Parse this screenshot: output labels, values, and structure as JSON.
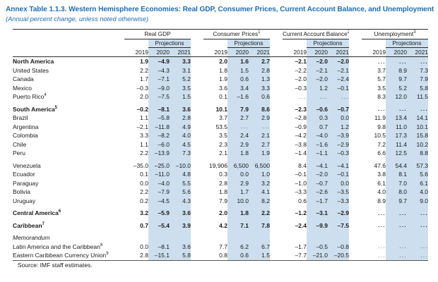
{
  "title": "Annex Table 1.1.3. Western Hemisphere Economies: Real GDP, Consumer Prices, Current Account Balance, and Unemployment",
  "subtitle": "(Annual percent change, unless noted otherwise)",
  "source": "Source: IMF staff estimates.",
  "colors": {
    "title_blue": "#1e6fb4",
    "projection_band_blue": "#cddfee",
    "rule_dark": "#2b2b2b"
  },
  "table": {
    "groups": [
      {
        "label": "Real GDP",
        "sup": ""
      },
      {
        "label": "Consumer Prices",
        "sup": "1"
      },
      {
        "label": "Current Account Balance",
        "sup": "2"
      },
      {
        "label": "Unemployment",
        "sup": "3"
      }
    ],
    "projections_label": "Projections",
    "years": [
      "2019",
      "2020",
      "2021"
    ],
    "rows": [
      {
        "label": "North America",
        "sup": "",
        "bold": true,
        "values": [
          "1.9",
          "–4.9",
          "3.3",
          "2.0",
          "1.6",
          "2.7",
          "–2.1",
          "–2.0",
          "–2.0",
          "...",
          "...",
          "..."
        ]
      },
      {
        "label": "United States",
        "sup": "",
        "values": [
          "2.2",
          "–4.3",
          "3.1",
          "1.8",
          "1.5",
          "2.8",
          "–2.2",
          "–2.1",
          "–2.1",
          "3.7",
          "8.9",
          "7.3"
        ]
      },
      {
        "label": "Canada",
        "sup": "",
        "values": [
          "1.7",
          "–7.1",
          "5.2",
          "1.9",
          "0.6",
          "1.3",
          "–2.0",
          "–2.0",
          "–2.4",
          "5.7",
          "9.7",
          "7.9"
        ]
      },
      {
        "label": "Mexico",
        "sup": "",
        "values": [
          "–0.3",
          "–9.0",
          "3.5",
          "3.6",
          "3.4",
          "3.3",
          "–0.3",
          "1.2",
          "–0.1",
          "3.5",
          "5.2",
          "5.8"
        ]
      },
      {
        "label": "Puerto Rico",
        "sup": "4",
        "values": [
          "2.0",
          "–7.5",
          "1.5",
          "0.1",
          "–1.6",
          "0.6",
          "...",
          "...",
          "...",
          "8.3",
          "12.0",
          "11.5"
        ]
      },
      {
        "spacer": true
      },
      {
        "label": "South America",
        "sup": "5",
        "bold": true,
        "values": [
          "–0.2",
          "–8.1",
          "3.6",
          "10.1",
          "7.9",
          "8.6",
          "–2.3",
          "–0.6",
          "–0.7",
          "...",
          "...",
          "..."
        ]
      },
      {
        "label": "Brazil",
        "sup": "",
        "values": [
          "1.1",
          "–5.8",
          "2.8",
          "3.7",
          "2.7",
          "2.9",
          "–2.8",
          "0.3",
          "0.0",
          "11.9",
          "13.4",
          "14.1"
        ]
      },
      {
        "label": "Argentina",
        "sup": "",
        "values": [
          "–2.1",
          "–11.8",
          "4.9",
          "53.5",
          "...",
          "...",
          "–0.9",
          "0.7",
          "1.2",
          "9.8",
          "11.0",
          "10.1"
        ]
      },
      {
        "label": "Colombia",
        "sup": "",
        "values": [
          "3.3",
          "–8.2",
          "4.0",
          "3.5",
          "2.4",
          "2.1",
          "–4.2",
          "–4.0",
          "–3.9",
          "10.5",
          "17.3",
          "15.8"
        ]
      },
      {
        "label": "Chile",
        "sup": "",
        "values": [
          "1.1",
          "–6.0",
          "4.5",
          "2.3",
          "2.9",
          "2.7",
          "–3.8",
          "–1.6",
          "–2.9",
          "7.2",
          "11.4",
          "10.2"
        ]
      },
      {
        "label": "Peru",
        "sup": "",
        "values": [
          "2.2",
          "–13.9",
          "7.3",
          "2.1",
          "1.8",
          "1.9",
          "–1.4",
          "–1.1",
          "–0.3",
          "6.6",
          "12.5",
          "8.8"
        ]
      },
      {
        "spacer": true
      },
      {
        "label": "Venezuela",
        "sup": "",
        "values": [
          "–35.0",
          "–25.0",
          "–10.0",
          "19,906",
          "6,500",
          "6,500",
          "8.4",
          "–4.1",
          "–4.1",
          "47.6",
          "54.4",
          "57.3"
        ]
      },
      {
        "label": "Ecuador",
        "sup": "",
        "values": [
          "0.1",
          "–11.0",
          "4.8",
          "0.3",
          "0.0",
          "1.0",
          "–0.1",
          "–2.0",
          "–0.1",
          "3.8",
          "8.1",
          "5.6"
        ]
      },
      {
        "label": "Paraguay",
        "sup": "",
        "values": [
          "0.0",
          "–4.0",
          "5.5",
          "2.8",
          "2.9",
          "3.2",
          "–1.0",
          "–0.7",
          "0.0",
          "6.1",
          "7.0",
          "6.1"
        ]
      },
      {
        "label": "Bolivia",
        "sup": "",
        "values": [
          "2.2",
          "–7.9",
          "5.6",
          "1.8",
          "1.7",
          "4.1",
          "–3.3",
          "–2.6",
          "–3.5",
          "4.0",
          "8.0",
          "4.0"
        ]
      },
      {
        "label": "Uruguay",
        "sup": "",
        "values": [
          "0.2",
          "–4.5",
          "4.3",
          "7.9",
          "10.0",
          "8.2",
          "0.6",
          "–1.7",
          "–3.3",
          "8.9",
          "9.7",
          "9.0"
        ]
      },
      {
        "spacer": true
      },
      {
        "label": "Central America",
        "sup": "6",
        "bold": true,
        "values": [
          "3.2",
          "–5.9",
          "3.6",
          "2.0",
          "1.8",
          "2.2",
          "–1.2",
          "–3.1",
          "–2.9",
          "...",
          "...",
          "..."
        ]
      },
      {
        "spacer": true
      },
      {
        "label": "Caribbean",
        "sup": "7",
        "bold": true,
        "values": [
          "0.7",
          "–5.4",
          "3.9",
          "4.2",
          "7.1",
          "7.8",
          "–2.4",
          "–9.9",
          "–7.5",
          "...",
          "...",
          "..."
        ]
      },
      {
        "spacer": true
      },
      {
        "label": "Memorandum",
        "sup": "",
        "italic": true,
        "values": null
      },
      {
        "label": "Latin America and the Caribbean",
        "sup": "8",
        "values": [
          "0.0",
          "–8.1",
          "3.6",
          "7.7",
          "6.2",
          "6.7",
          "–1.7",
          "–0.5",
          "–0.8",
          "...",
          "...",
          "..."
        ]
      },
      {
        "label": "Eastern Caribbean Currency Union",
        "sup": "9",
        "values": [
          "2.8",
          "–15.1",
          "5.8",
          "0.8",
          "0.6",
          "1.5",
          "–7.7",
          "–21.0",
          "–20.5",
          "...",
          "...",
          "..."
        ]
      }
    ]
  }
}
